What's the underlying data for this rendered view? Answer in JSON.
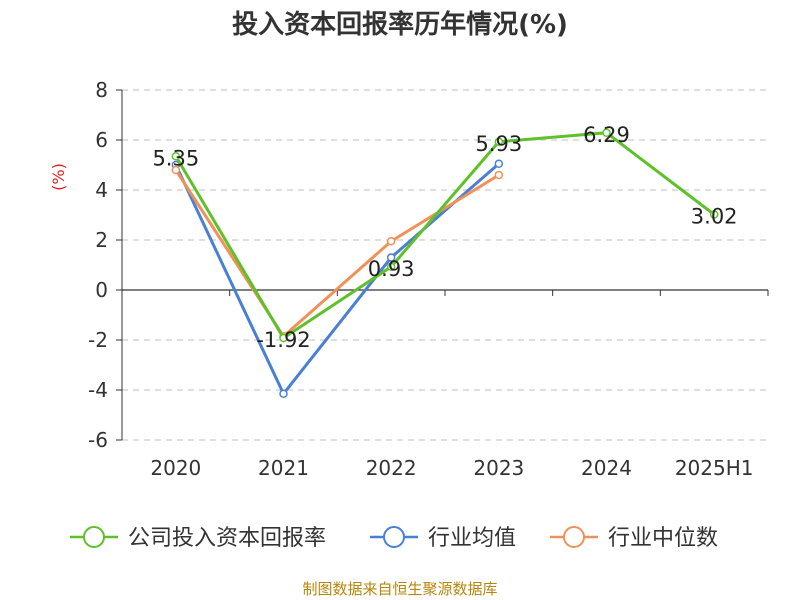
{
  "chart_data": {
    "type": "line",
    "title": "投入资本回报率历年情况(%)",
    "ylabel": "(%)",
    "xlabel": "",
    "categories": [
      "2020",
      "2021",
      "2022",
      "2023",
      "2024",
      "2025H1"
    ],
    "ylim": [
      -6,
      8
    ],
    "yticks": [
      8,
      6,
      4,
      2,
      0,
      -2,
      -4,
      -6
    ],
    "grid": true,
    "legend_position": "bottom",
    "series": [
      {
        "name": "公司投入资本回报率",
        "values": [
          5.35,
          -1.92,
          0.93,
          5.93,
          6.29,
          3.02
        ],
        "color": "#5fc12a",
        "labels": [
          "5.35",
          "-1.92",
          "0.93",
          "5.93",
          "6.29",
          "3.02"
        ]
      },
      {
        "name": "行业均值",
        "values": [
          5.0,
          -4.15,
          1.3,
          5.05,
          null,
          null
        ],
        "color": "#4a7fd6"
      },
      {
        "name": "行业中位数",
        "values": [
          4.8,
          -1.85,
          1.95,
          4.6,
          null,
          null
        ],
        "color": "#f0915a"
      }
    ]
  },
  "source": "制图数据来自恒生聚源数据库"
}
